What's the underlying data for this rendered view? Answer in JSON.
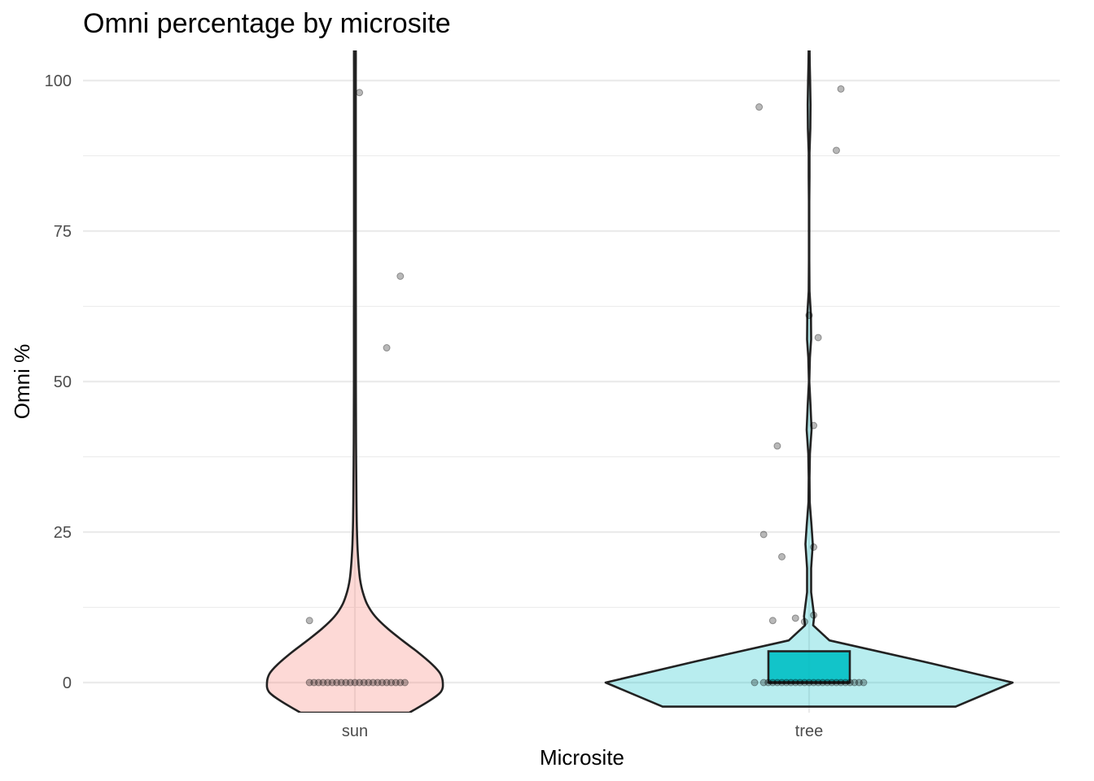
{
  "chart_data": {
    "type": "violin",
    "title": "Omni percentage by microsite",
    "xlabel": "Microsite",
    "ylabel": "Omni %",
    "categories": [
      "sun",
      "tree"
    ],
    "ylim": [
      -4,
      105
    ],
    "yticks": [
      0,
      25,
      50,
      75,
      100
    ],
    "y_minor_ticks": [
      12.5,
      37.5,
      62.5,
      87.5
    ],
    "grid": true,
    "legend": "none",
    "colors": {
      "sun": "#f8766d",
      "tree": "#00bfc4",
      "outline": "#222222",
      "grid": "#ebebeb",
      "points": "#000000"
    },
    "series": [
      {
        "category": "sun",
        "violin_profile": [
          [
            -5,
            0.62
          ],
          [
            -3,
            0.85
          ],
          [
            -1.5,
            0.98
          ],
          [
            0,
            1.0
          ],
          [
            1.5,
            0.97
          ],
          [
            3,
            0.88
          ],
          [
            5,
            0.72
          ],
          [
            7,
            0.54
          ],
          [
            9,
            0.37
          ],
          [
            11,
            0.23
          ],
          [
            13,
            0.14
          ],
          [
            15,
            0.09
          ],
          [
            17,
            0.06
          ],
          [
            19,
            0.045
          ],
          [
            21,
            0.035
          ],
          [
            23,
            0.028
          ],
          [
            26,
            0.022
          ],
          [
            30,
            0.018
          ],
          [
            40,
            0.013
          ],
          [
            50,
            0.011
          ],
          [
            60,
            0.011
          ],
          [
            70,
            0.01
          ],
          [
            80,
            0.01
          ],
          [
            90,
            0.01
          ],
          [
            100,
            0.01
          ],
          [
            106,
            0.009
          ]
        ],
        "box": null,
        "points": [
          {
            "x_offset": -0.1,
            "y": 10.3
          },
          {
            "x_offset": 0.01,
            "y": 98.0
          },
          {
            "x_offset": 0.07,
            "y": 55.6
          },
          {
            "x_offset": 0.1,
            "y": 67.5
          },
          {
            "x_offset": -0.1,
            "y": 0
          },
          {
            "x_offset": -0.09,
            "y": 0
          },
          {
            "x_offset": -0.08,
            "y": 0
          },
          {
            "x_offset": -0.07,
            "y": 0
          },
          {
            "x_offset": -0.06,
            "y": 0
          },
          {
            "x_offset": -0.05,
            "y": 0
          },
          {
            "x_offset": -0.04,
            "y": 0
          },
          {
            "x_offset": -0.03,
            "y": 0
          },
          {
            "x_offset": -0.02,
            "y": 0
          },
          {
            "x_offset": -0.01,
            "y": 0
          },
          {
            "x_offset": 0.0,
            "y": 0
          },
          {
            "x_offset": 0.01,
            "y": 0
          },
          {
            "x_offset": 0.02,
            "y": 0
          },
          {
            "x_offset": 0.03,
            "y": 0
          },
          {
            "x_offset": 0.04,
            "y": 0
          },
          {
            "x_offset": 0.05,
            "y": 0
          },
          {
            "x_offset": 0.06,
            "y": 0
          },
          {
            "x_offset": 0.07,
            "y": 0
          },
          {
            "x_offset": 0.08,
            "y": 0
          },
          {
            "x_offset": 0.09,
            "y": 0
          },
          {
            "x_offset": 0.1,
            "y": 0
          },
          {
            "x_offset": 0.11,
            "y": 0
          }
        ]
      },
      {
        "category": "tree",
        "violin_profile": [
          [
            -4,
            0.72
          ],
          [
            0,
            1.0
          ],
          [
            3.5,
            0.56
          ],
          [
            7,
            0.1
          ],
          [
            9.5,
            0.02
          ],
          [
            11,
            0.025
          ],
          [
            15,
            0.01
          ],
          [
            19,
            0.01
          ],
          [
            23,
            0.018
          ],
          [
            26,
            0.012
          ],
          [
            30,
            0.003
          ],
          [
            34,
            0.002
          ],
          [
            38,
            0.004
          ],
          [
            42,
            0.012
          ],
          [
            46,
            0.007
          ],
          [
            50,
            0.001
          ],
          [
            54,
            0.004
          ],
          [
            57,
            0.01
          ],
          [
            61,
            0.009
          ],
          [
            65,
            0.002
          ],
          [
            70,
            0.001
          ],
          [
            75,
            0.001
          ],
          [
            80,
            0.001
          ],
          [
            84,
            0.002
          ],
          [
            88,
            0.002
          ],
          [
            92,
            0.006
          ],
          [
            96,
            0.007
          ],
          [
            100,
            0.005
          ],
          [
            103,
            0.003
          ],
          [
            106,
            0.002
          ]
        ],
        "box": {
          "q1": 0,
          "median": 0,
          "q3": 5.2
        },
        "points": [
          {
            "x_offset": -0.11,
            "y": 95.6
          },
          {
            "x_offset": 0.07,
            "y": 98.6
          },
          {
            "x_offset": 0.06,
            "y": 88.4
          },
          {
            "x_offset": 0.0,
            "y": 61.0
          },
          {
            "x_offset": 0.02,
            "y": 57.3
          },
          {
            "x_offset": 0.01,
            "y": 42.7
          },
          {
            "x_offset": -0.07,
            "y": 39.3
          },
          {
            "x_offset": -0.1,
            "y": 24.6
          },
          {
            "x_offset": -0.06,
            "y": 20.9
          },
          {
            "x_offset": 0.01,
            "y": 22.5
          },
          {
            "x_offset": -0.08,
            "y": 10.3
          },
          {
            "x_offset": -0.03,
            "y": 10.7
          },
          {
            "x_offset": -0.01,
            "y": 10.1
          },
          {
            "x_offset": 0.01,
            "y": 11.2
          },
          {
            "x_offset": -0.12,
            "y": 0
          },
          {
            "x_offset": -0.1,
            "y": 0
          },
          {
            "x_offset": -0.09,
            "y": 0
          },
          {
            "x_offset": -0.08,
            "y": 0
          },
          {
            "x_offset": -0.07,
            "y": 0
          },
          {
            "x_offset": -0.06,
            "y": 0
          },
          {
            "x_offset": -0.05,
            "y": 0
          },
          {
            "x_offset": -0.04,
            "y": 0
          },
          {
            "x_offset": -0.03,
            "y": 0
          },
          {
            "x_offset": -0.02,
            "y": 0
          },
          {
            "x_offset": -0.01,
            "y": 0
          },
          {
            "x_offset": 0.0,
            "y": 0
          },
          {
            "x_offset": 0.01,
            "y": 0
          },
          {
            "x_offset": 0.02,
            "y": 0
          },
          {
            "x_offset": 0.03,
            "y": 0
          },
          {
            "x_offset": 0.04,
            "y": 0
          },
          {
            "x_offset": 0.05,
            "y": 0
          },
          {
            "x_offset": 0.06,
            "y": 0
          },
          {
            "x_offset": 0.07,
            "y": 0
          },
          {
            "x_offset": 0.08,
            "y": 0
          },
          {
            "x_offset": 0.09,
            "y": 0
          },
          {
            "x_offset": 0.1,
            "y": 0
          },
          {
            "x_offset": 0.11,
            "y": 0
          },
          {
            "x_offset": 0.12,
            "y": 0
          }
        ]
      }
    ]
  }
}
